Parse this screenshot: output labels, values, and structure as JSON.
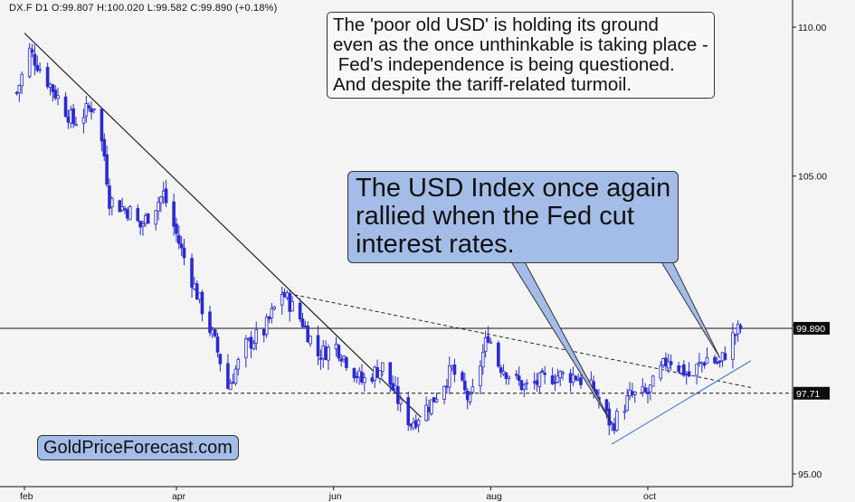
{
  "header": {
    "text": "DX.F  D1  O:99.807  H:100.020  L:99.582  C:99.890  (+0.18%)"
  },
  "annotations": {
    "note": "The 'poor old USD' is holding its ground\neven as the once unthinkable is taking place -\n Fed's independence is being questioned.\nAnd despite the tariff-related turmoil.",
    "callout": "The USD Index once again\nrallied when the Fed cut\ninterest rates.",
    "brand": "GoldPriceForecast.com"
  },
  "colors": {
    "background": "#f4f4f4",
    "candles": "#2a2ad0",
    "axis": "#111111",
    "support_line": "#3b7ad8",
    "callout_fill": "#a4bde8"
  },
  "chart_data": {
    "type": "candlestick",
    "instrument": "DX.F",
    "timeframe": "D1",
    "x_unit": "date (2025)",
    "x_ticks": [
      {
        "date": "2025-02-01",
        "label": "feb"
      },
      {
        "date": "2025-04-01",
        "label": "apr"
      },
      {
        "date": "2025-06-01",
        "label": "jun"
      },
      {
        "date": "2025-08-01",
        "label": "aug"
      },
      {
        "date": "2025-10-01",
        "label": "oct"
      }
    ],
    "x_range": [
      "2025-01-29",
      "2025-11-25"
    ],
    "y_ticks": [
      95.0,
      100.0,
      105.0,
      110.0
    ],
    "y_tick_labels": [
      "95.00",
      "",
      "105.00",
      "110.00"
    ],
    "y_range": [
      94.8,
      110.9
    ],
    "price_labels": [
      {
        "value": 99.89,
        "label": "99.890",
        "style": "solid"
      },
      {
        "value": 97.71,
        "label": "97.71",
        "style": "dashed"
      }
    ],
    "ohlc_summary": {
      "open": 99.807,
      "high": 100.02,
      "low": 99.582,
      "close": 99.89,
      "change": "+0.18%"
    },
    "price_path": [
      {
        "date": "2025-01-29",
        "value": 107.8
      },
      {
        "date": "2025-02-03",
        "value": 109.2
      },
      {
        "date": "2025-02-10",
        "value": 108.2
      },
      {
        "date": "2025-02-20",
        "value": 106.8
      },
      {
        "date": "2025-02-28",
        "value": 107.4
      },
      {
        "date": "2025-03-04",
        "value": 105.7
      },
      {
        "date": "2025-03-06",
        "value": 104.2
      },
      {
        "date": "2025-03-14",
        "value": 103.8
      },
      {
        "date": "2025-03-18",
        "value": 103.3
      },
      {
        "date": "2025-03-27",
        "value": 104.4
      },
      {
        "date": "2025-04-03",
        "value": 102.5
      },
      {
        "date": "2025-04-10",
        "value": 100.8
      },
      {
        "date": "2025-04-16",
        "value": 99.4
      },
      {
        "date": "2025-04-21",
        "value": 97.9
      },
      {
        "date": "2025-04-28",
        "value": 99.3
      },
      {
        "date": "2025-05-05",
        "value": 99.8
      },
      {
        "date": "2025-05-12",
        "value": 101.1
      },
      {
        "date": "2025-05-20",
        "value": 100.1
      },
      {
        "date": "2025-05-26",
        "value": 99.0
      },
      {
        "date": "2025-06-02",
        "value": 99.3
      },
      {
        "date": "2025-06-12",
        "value": 98.1
      },
      {
        "date": "2025-06-20",
        "value": 98.6
      },
      {
        "date": "2025-06-27",
        "value": 97.3
      },
      {
        "date": "2025-07-01",
        "value": 96.7
      },
      {
        "date": "2025-07-09",
        "value": 97.4
      },
      {
        "date": "2025-07-17",
        "value": 98.5
      },
      {
        "date": "2025-07-24",
        "value": 97.4
      },
      {
        "date": "2025-07-31",
        "value": 99.7
      },
      {
        "date": "2025-08-04",
        "value": 98.7
      },
      {
        "date": "2025-08-14",
        "value": 97.9
      },
      {
        "date": "2025-08-26",
        "value": 98.3
      },
      {
        "date": "2025-09-03",
        "value": 98.3
      },
      {
        "date": "2025-09-10",
        "value": 97.8
      },
      {
        "date": "2025-09-17",
        "value": 96.6
      },
      {
        "date": "2025-09-24",
        "value": 97.6
      },
      {
        "date": "2025-10-01",
        "value": 97.7
      },
      {
        "date": "2025-10-09",
        "value": 98.9
      },
      {
        "date": "2025-10-17",
        "value": 98.3
      },
      {
        "date": "2025-10-24",
        "value": 98.9
      },
      {
        "date": "2025-10-29",
        "value": 98.7
      },
      {
        "date": "2025-11-03",
        "value": 99.6
      },
      {
        "date": "2025-11-06",
        "value": 99.9
      }
    ],
    "lines": [
      {
        "name": "downtrend",
        "style": "solid",
        "color": "#111111",
        "points": [
          {
            "date": "2025-02-01",
            "value": 109.8
          },
          {
            "date": "2025-07-05",
            "value": 96.9
          }
        ]
      },
      {
        "name": "resistance",
        "style": "dashed",
        "color": "#111111",
        "points": [
          {
            "date": "2025-05-12",
            "value": 101.1
          },
          {
            "date": "2025-11-10",
            "value": 97.9
          }
        ]
      },
      {
        "name": "support",
        "style": "solid",
        "color": "#3b7ad8",
        "points": [
          {
            "date": "2025-09-17",
            "value": 96.0
          },
          {
            "date": "2025-11-10",
            "value": 98.8
          }
        ]
      }
    ],
    "callout_targets": [
      {
        "date": "2025-09-17",
        "value": 96.7
      },
      {
        "date": "2025-10-29",
        "value": 98.9
      }
    ]
  }
}
